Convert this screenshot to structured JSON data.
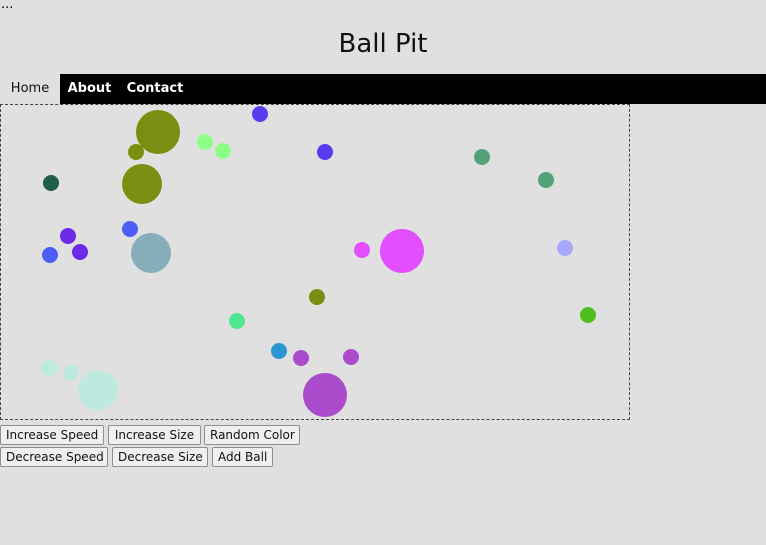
{
  "header": {
    "ellipsis": "...",
    "title": "Ball Pit"
  },
  "nav": {
    "items": [
      {
        "label": "Home",
        "active": true
      },
      {
        "label": "About",
        "active": false
      },
      {
        "label": "Contact",
        "active": false
      }
    ]
  },
  "pit": {
    "ball_colors": [
      "#7a8f12",
      "#5b3bf0",
      "#8dff86",
      "#1f5c4a",
      "#52a37a",
      "#a8a6ff",
      "#4ee68f",
      "#2b97d0",
      "#aa4bcc",
      "#bde9df",
      "#e34fff",
      "#4fbf1f",
      "#86aeb9",
      "#4c5ef5",
      "#6b2be8"
    ]
  },
  "controls": {
    "increase_speed": "Increase Speed",
    "increase_size": "Increase Size",
    "random_color": "Random Color",
    "decrease_speed": "Decrease Speed",
    "decrease_size": "Decrease Size",
    "add_ball": "Add Ball"
  }
}
